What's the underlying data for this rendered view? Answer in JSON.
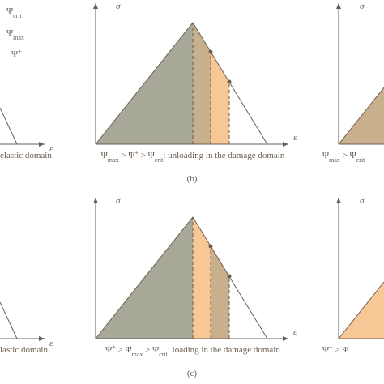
{
  "legend": [
    {
      "symbol": "Ψ",
      "sub": "crit"
    },
    {
      "symbol": "Ψ",
      "sub": "max"
    },
    {
      "symbol": "Ψ",
      "sup": "+"
    }
  ],
  "axis_labels": {
    "y": "σ",
    "x": "ε"
  },
  "rows": [
    {
      "label": "(b)",
      "left_caption": "elastic domain",
      "center_caption": [
        "Ψ",
        {
          "sub": "max"
        },
        " > Ψ",
        {
          "sup": "+"
        },
        " > Ψ",
        {
          "sub": "crit"
        },
        ": unloading in the damage domain"
      ],
      "right_caption": [
        "Ψ",
        {
          "sub": "max"
        },
        " > Ψ",
        {
          "sub": "crit"
        }
      ]
    },
    {
      "label": "(c)",
      "left_caption": "lastic domain",
      "center_caption": [
        "Ψ",
        {
          "sup": "+"
        },
        " > Ψ",
        {
          "sub": "max"
        },
        " > Ψ",
        {
          "sub": "crit"
        },
        ": loading in the damage domain"
      ],
      "right_caption": [
        "Ψ",
        {
          "sup": "+"
        },
        " > Ψ"
      ]
    }
  ]
}
